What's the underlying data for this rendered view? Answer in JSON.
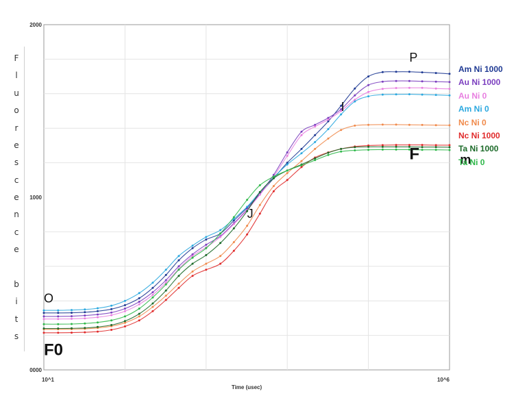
{
  "chart_data": {
    "type": "line",
    "title": "",
    "xlabel": "Time (usec)",
    "ylabel_letters": [
      "F",
      "l",
      "u",
      "o",
      "r",
      "e",
      "s",
      "c",
      "e",
      "n",
      "c",
      "e",
      "",
      "b",
      "i",
      "t",
      "s"
    ],
    "x_scale": "log",
    "xlim": [
      10,
      1000000
    ],
    "ylim": [
      0,
      2000
    ],
    "x_tick_labels": [
      "10^1",
      "10^6"
    ],
    "y_tick_labels": [
      "0000",
      "1000",
      "2000"
    ],
    "grid": true,
    "legend_position": "right",
    "x": [
      10,
      15,
      22,
      32,
      46,
      68,
      100,
      150,
      220,
      320,
      460,
      680,
      1000,
      1500,
      2200,
      3200,
      4600,
      6800,
      10000,
      15000,
      22000,
      32000,
      46000,
      68000,
      100000,
      150000,
      220000,
      320000,
      460000,
      680000,
      1000000
    ],
    "series": [
      {
        "name": "Am Ni 1000",
        "color": "#1f3a93",
        "values": [
          330,
          330,
          331,
          334,
          340,
          352,
          375,
          415,
          475,
          550,
          635,
          705,
          755,
          790,
          865,
          940,
          1020,
          1110,
          1200,
          1280,
          1360,
          1440,
          1530,
          1630,
          1700,
          1725,
          1727,
          1727,
          1724,
          1720,
          1715
        ]
      },
      {
        "name": "Au Ni 1000",
        "color": "#7b3fbf",
        "values": [
          310,
          310,
          311,
          315,
          321,
          332,
          355,
          395,
          450,
          520,
          600,
          670,
          725,
          775,
          850,
          930,
          1020,
          1130,
          1260,
          1380,
          1420,
          1460,
          1510,
          1590,
          1650,
          1670,
          1674,
          1674,
          1672,
          1670,
          1668
        ]
      },
      {
        "name": "Au Ni 0",
        "color": "#e87fe0",
        "values": [
          295,
          295,
          296,
          299,
          305,
          317,
          340,
          380,
          435,
          505,
          585,
          660,
          710,
          770,
          845,
          925,
          1015,
          1120,
          1240,
          1360,
          1410,
          1450,
          1500,
          1565,
          1610,
          1628,
          1633,
          1634,
          1634,
          1630,
          1628
        ]
      },
      {
        "name": "Am Ni 0",
        "color": "#2ba8df",
        "values": [
          345,
          345,
          347,
          350,
          357,
          372,
          400,
          445,
          505,
          580,
          660,
          720,
          770,
          810,
          875,
          945,
          1030,
          1115,
          1190,
          1255,
          1320,
          1395,
          1480,
          1555,
          1585,
          1595,
          1596,
          1597,
          1595,
          1593,
          1590
        ]
      },
      {
        "name": "Nc Ni 0",
        "color": "#f08a4b",
        "values": [
          235,
          235,
          236,
          238,
          243,
          253,
          273,
          310,
          365,
          430,
          500,
          570,
          615,
          660,
          740,
          835,
          955,
          1065,
          1140,
          1210,
          1280,
          1340,
          1390,
          1415,
          1420,
          1421,
          1421,
          1420,
          1419,
          1418,
          1417
        ]
      },
      {
        "name": "Nc Ni 1000",
        "color": "#e02a2a",
        "values": [
          215,
          215,
          216,
          218,
          222,
          232,
          252,
          287,
          340,
          405,
          475,
          545,
          580,
          615,
          690,
          785,
          905,
          1035,
          1100,
          1175,
          1230,
          1260,
          1280,
          1294,
          1300,
          1302,
          1303,
          1303,
          1303,
          1302,
          1302
        ]
      },
      {
        "name": "Ta Ni 1000",
        "color": "#1d6b2a",
        "values": [
          240,
          240,
          241,
          243,
          249,
          260,
          283,
          325,
          385,
          460,
          545,
          615,
          665,
          735,
          820,
          920,
          1030,
          1110,
          1155,
          1190,
          1225,
          1258,
          1280,
          1290,
          1292,
          1292,
          1292,
          1292,
          1291,
          1291,
          1290
        ]
      },
      {
        "name": "Ta Ni 0",
        "color": "#2fb84a",
        "values": [
          265,
          265,
          266,
          269,
          275,
          287,
          310,
          355,
          420,
          495,
          580,
          650,
          705,
          790,
          885,
          985,
          1070,
          1120,
          1155,
          1185,
          1215,
          1245,
          1265,
          1272,
          1275,
          1276,
          1276,
          1276,
          1275,
          1275,
          1274
        ]
      }
    ],
    "annotations": [
      {
        "text": "O",
        "x": 10,
        "y": 390,
        "size": 18,
        "weight": "normal"
      },
      {
        "text": "J",
        "x": 3200,
        "y": 880,
        "size": 18,
        "weight": "normal"
      },
      {
        "text": "I",
        "x": 46000,
        "y": 1500,
        "size": 18,
        "weight": "normal"
      },
      {
        "text": "P",
        "x": 320000,
        "y": 1785,
        "size": 18,
        "weight": "normal"
      },
      {
        "text": "F0",
        "x": 10,
        "y": 85,
        "size": 24,
        "weight": "bold"
      },
      {
        "text": "F",
        "x": 320000,
        "y": 1220,
        "size": 24,
        "weight": "bold"
      },
      {
        "text": "m",
        "x": 1350000,
        "y": 1195,
        "size": 18,
        "weight": "bold"
      }
    ]
  }
}
